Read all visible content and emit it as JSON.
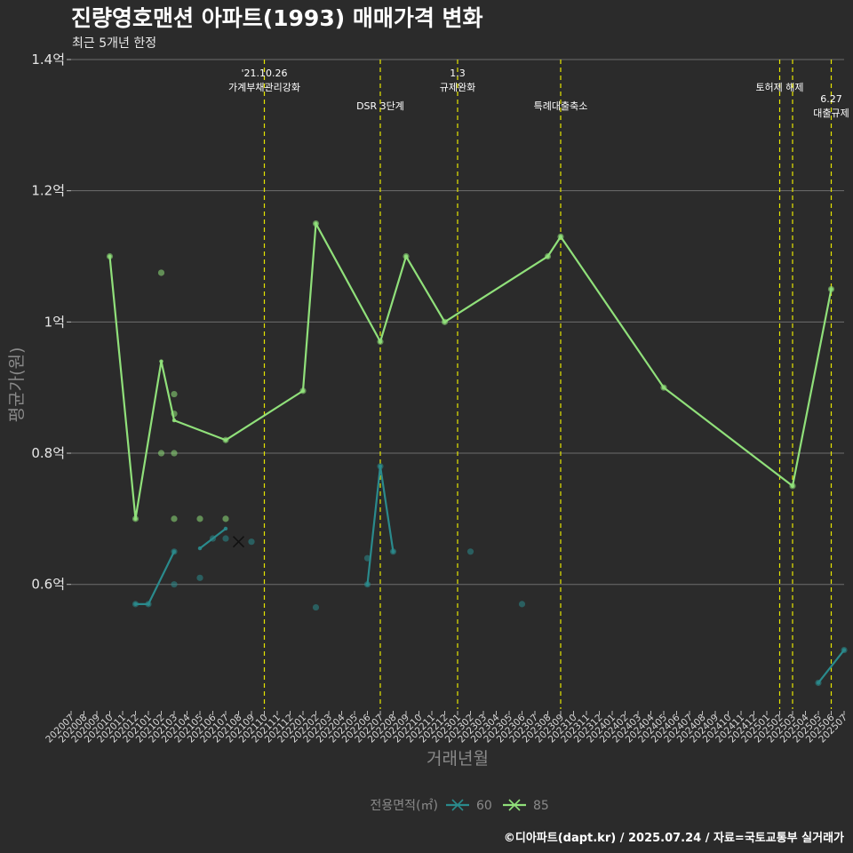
{
  "chart_data": {
    "type": "line",
    "title": "진량영호맨션 아파트(1993) 매매가격 변화",
    "subtitle": "최근 5개년 한정",
    "xlabel": "거래년월",
    "ylabel": "평균가(원)",
    "caption": "©디아파트(dapt.kr) / 2025.07.24 / 자료=국토교통부 실거래가",
    "ylim": [
      0.41,
      1.4
    ],
    "yticks": [
      {
        "value": 0.6,
        "label": "0.6억"
      },
      {
        "value": 0.8,
        "label": "0.8억"
      },
      {
        "value": 1.0,
        "label": "1억"
      },
      {
        "value": 1.2,
        "label": "1.2억"
      },
      {
        "value": 1.4,
        "label": "1.4억"
      }
    ],
    "x_categories": [
      "202007",
      "202008",
      "202009",
      "202010",
      "202011",
      "202012",
      "202101",
      "202102",
      "202103",
      "202104",
      "202105",
      "202106",
      "202107",
      "202108",
      "202109",
      "202110",
      "202111",
      "202112",
      "202201",
      "202202",
      "202203",
      "202204",
      "202205",
      "202206",
      "202207",
      "202208",
      "202209",
      "202210",
      "202211",
      "202212",
      "202301",
      "202302",
      "202303",
      "202304",
      "202305",
      "202306",
      "202307",
      "202308",
      "202309",
      "202310",
      "202311",
      "202312",
      "202401",
      "202402",
      "202403",
      "202404",
      "202405",
      "202406",
      "202407",
      "202408",
      "202409",
      "202410",
      "202411",
      "202412",
      "202501",
      "202502",
      "202503",
      "202504",
      "202505",
      "202506",
      "202507"
    ],
    "grid": true,
    "legend": {
      "title": "전용면적(㎡)",
      "position": "bottom",
      "entries": [
        {
          "name": "60",
          "color": "#2a8a8c"
        },
        {
          "name": "85",
          "color": "#90e07a"
        }
      ]
    },
    "events": [
      {
        "x": "202110",
        "label": [
          "'21.10.26",
          "가계부채관리강화"
        ],
        "level": "high"
      },
      {
        "x": "202207",
        "label": [
          "DSR 3단계"
        ],
        "level": "low"
      },
      {
        "x": "202301",
        "label": [
          "1.3",
          "규제완화"
        ],
        "level": "high"
      },
      {
        "x": "202309",
        "label": [
          "특례대출축소"
        ],
        "level": "low"
      },
      {
        "x": "202502",
        "label": [
          "토허제 해제"
        ],
        "level": "mid"
      },
      {
        "x": "202503",
        "label": [],
        "level": "mid"
      },
      {
        "x": "202506",
        "label": [
          "6.27",
          "대출규제"
        ],
        "level": "low"
      }
    ],
    "series": [
      {
        "name": "60",
        "color": "#2a8a8c",
        "line": [
          {
            "x": "202012",
            "y": 0.57
          },
          {
            "x": "202101",
            "y": 0.57
          },
          {
            "x": "202103",
            "y": 0.65
          },
          {
            "x": "202105",
            "y": 0.655
          },
          {
            "x": "202107",
            "y": 0.685
          },
          {
            "x": "202206",
            "y": 0.6
          },
          {
            "x": "202207",
            "y": 0.78
          },
          {
            "x": "202208",
            "y": 0.65
          },
          {
            "x": "202505",
            "y": 0.45
          },
          {
            "x": "202507",
            "y": 0.5
          }
        ],
        "segments": [
          [
            0,
            2
          ],
          [
            3,
            4
          ],
          [
            5,
            7
          ],
          [
            8,
            9
          ]
        ],
        "points": [
          {
            "x": "202012",
            "y": 0.57
          },
          {
            "x": "202101",
            "y": 0.57
          },
          {
            "x": "202103",
            "y": 0.65
          },
          {
            "x": "202103",
            "y": 0.6
          },
          {
            "x": "202105",
            "y": 0.61
          },
          {
            "x": "202106",
            "y": 0.67
          },
          {
            "x": "202107",
            "y": 0.67
          },
          {
            "x": "202109",
            "y": 0.665
          },
          {
            "x": "202202",
            "y": 0.565
          },
          {
            "x": "202206",
            "y": 0.64
          },
          {
            "x": "202206",
            "y": 0.6
          },
          {
            "x": "202207",
            "y": 0.78
          },
          {
            "x": "202208",
            "y": 0.65
          },
          {
            "x": "202302",
            "y": 0.65
          },
          {
            "x": "202306",
            "y": 0.57
          },
          {
            "x": "202505",
            "y": 0.45
          },
          {
            "x": "202507",
            "y": 0.5
          }
        ],
        "cross_marker": {
          "x": "202108",
          "y": 0.665
        }
      },
      {
        "name": "85",
        "color": "#90e07a",
        "line": [
          {
            "x": "202010",
            "y": 1.1
          },
          {
            "x": "202012",
            "y": 0.7
          },
          {
            "x": "202102",
            "y": 0.94
          },
          {
            "x": "202103",
            "y": 0.85
          },
          {
            "x": "202107",
            "y": 0.82
          },
          {
            "x": "202201",
            "y": 0.895
          },
          {
            "x": "202202",
            "y": 1.15
          },
          {
            "x": "202207",
            "y": 0.97
          },
          {
            "x": "202209",
            "y": 1.1
          },
          {
            "x": "202212",
            "y": 1.0
          },
          {
            "x": "202308",
            "y": 1.1
          },
          {
            "x": "202309",
            "y": 1.13
          },
          {
            "x": "202405",
            "y": 0.9
          },
          {
            "x": "202503",
            "y": 0.75
          },
          {
            "x": "202506",
            "y": 1.05
          }
        ],
        "points": [
          {
            "x": "202010",
            "y": 1.1
          },
          {
            "x": "202012",
            "y": 0.7
          },
          {
            "x": "202102",
            "y": 1.075
          },
          {
            "x": "202102",
            "y": 0.8
          },
          {
            "x": "202103",
            "y": 0.89
          },
          {
            "x": "202103",
            "y": 0.86
          },
          {
            "x": "202103",
            "y": 0.8
          },
          {
            "x": "202103",
            "y": 0.7
          },
          {
            "x": "202105",
            "y": 0.7
          },
          {
            "x": "202107",
            "y": 0.7
          },
          {
            "x": "202107",
            "y": 0.82
          },
          {
            "x": "202201",
            "y": 0.895
          },
          {
            "x": "202202",
            "y": 1.15
          },
          {
            "x": "202207",
            "y": 0.97
          },
          {
            "x": "202209",
            "y": 1.1
          },
          {
            "x": "202212",
            "y": 1.0
          },
          {
            "x": "202308",
            "y": 1.1
          },
          {
            "x": "202309",
            "y": 1.13
          },
          {
            "x": "202405",
            "y": 0.9
          },
          {
            "x": "202503",
            "y": 0.75
          },
          {
            "x": "202506",
            "y": 1.05
          }
        ]
      }
    ]
  }
}
